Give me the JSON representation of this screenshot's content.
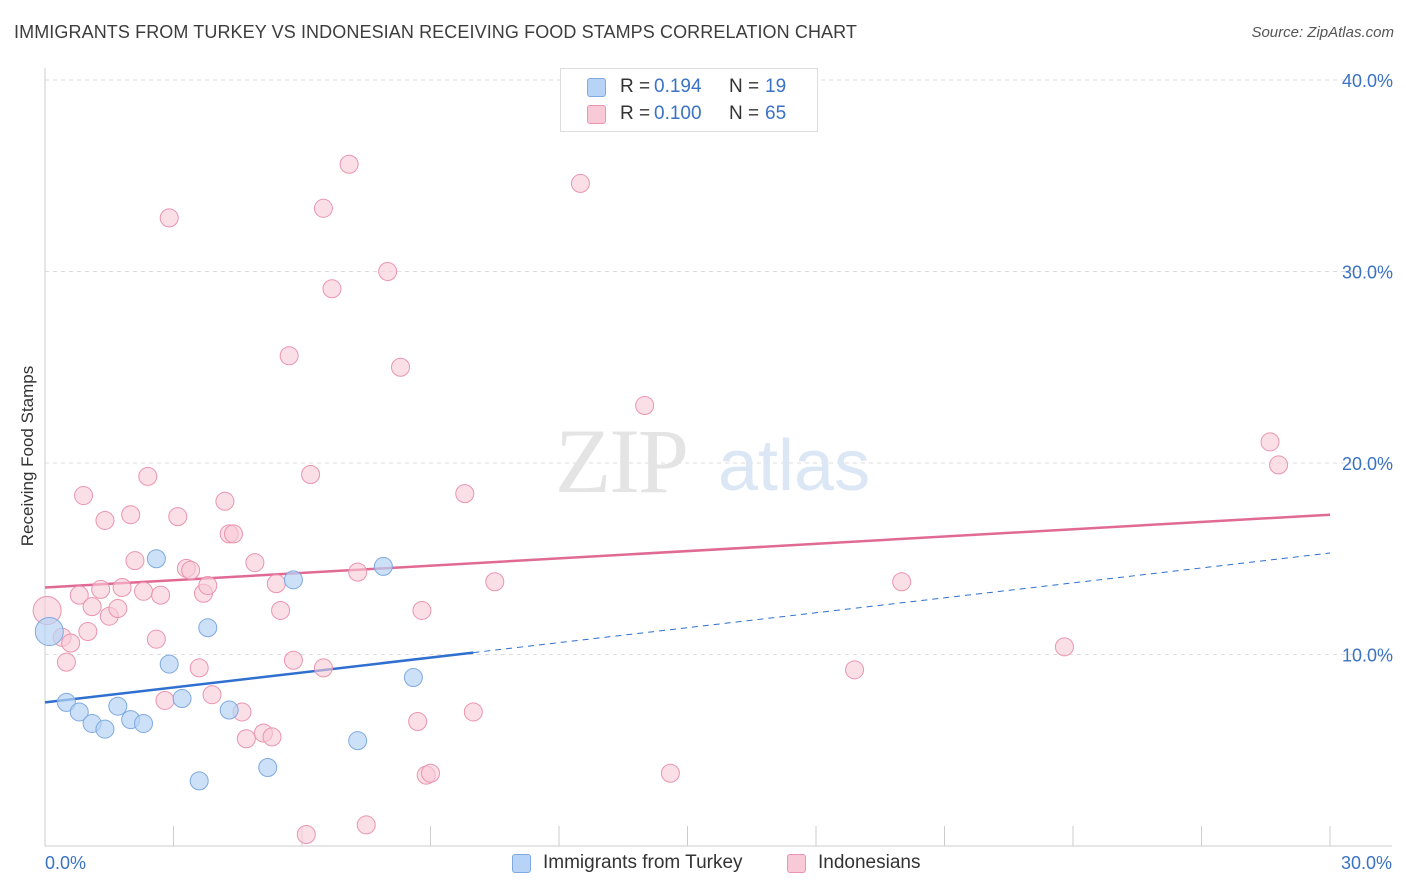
{
  "title": "IMMIGRANTS FROM TURKEY VS INDONESIAN RECEIVING FOOD STAMPS CORRELATION CHART",
  "source": "Source: ZipAtlas.com",
  "watermark": {
    "zip": "ZIP",
    "atlas": "atlas"
  },
  "legend": {
    "r_label": "R =",
    "n_label": "N =",
    "series1": {
      "r": "0.194",
      "n": "19"
    },
    "series2": {
      "r": "0.100",
      "n": "65"
    }
  },
  "colors": {
    "blue_fill": "#b7d3f5",
    "blue_stroke": "#7fa9e0",
    "blue_line": "#2e6fcf",
    "pink_fill": "#f8c9d7",
    "pink_stroke": "#ea94b0",
    "pink_line": "#e06a93",
    "grid": "#dddddd",
    "axis_text": "#3a72c4"
  },
  "chart_data": {
    "type": "scatter",
    "title": "IMMIGRANTS FROM TURKEY VS INDONESIAN RECEIVING FOOD STAMPS CORRELATION CHART",
    "xlabel": "",
    "ylabel": "Receiving Food Stamps",
    "xlim": [
      0,
      30
    ],
    "ylim": [
      0,
      40
    ],
    "x_tick_labels": [
      "0.0%",
      "30.0%"
    ],
    "y_ticks": [
      10,
      20,
      30,
      40
    ],
    "y_tick_labels": [
      "10.0%",
      "20.0%",
      "30.0%",
      "40.0%"
    ],
    "grid": true,
    "legend_position": "top-center",
    "series": [
      {
        "name": "Immigrants from Turkey",
        "color": "blue",
        "r": 0.194,
        "n": 19,
        "trend": {
          "x0": 0,
          "y0": 7.5,
          "x1": 10,
          "y1": 10.1,
          "dashed_to_x": 30,
          "dashed_to_y": 15.3
        },
        "points": [
          {
            "x": 0.1,
            "y": 11.2,
            "big": true
          },
          {
            "x": 0.5,
            "y": 7.5
          },
          {
            "x": 0.8,
            "y": 7.0
          },
          {
            "x": 1.1,
            "y": 6.4
          },
          {
            "x": 1.4,
            "y": 6.1
          },
          {
            "x": 1.7,
            "y": 7.3
          },
          {
            "x": 2.0,
            "y": 6.6
          },
          {
            "x": 2.3,
            "y": 6.4
          },
          {
            "x": 2.6,
            "y": 15.0
          },
          {
            "x": 2.9,
            "y": 9.5
          },
          {
            "x": 3.2,
            "y": 7.7
          },
          {
            "x": 3.6,
            "y": 3.4
          },
          {
            "x": 3.8,
            "y": 11.4
          },
          {
            "x": 4.3,
            "y": 7.1
          },
          {
            "x": 5.2,
            "y": 4.1
          },
          {
            "x": 5.8,
            "y": 13.9
          },
          {
            "x": 7.3,
            "y": 5.5
          },
          {
            "x": 7.9,
            "y": 14.6
          },
          {
            "x": 8.6,
            "y": 8.8
          }
        ]
      },
      {
        "name": "Indonesians",
        "color": "pink",
        "r": 0.1,
        "n": 65,
        "trend": {
          "x0": 0,
          "y0": 13.5,
          "x1": 30,
          "y1": 17.3
        },
        "points": [
          {
            "x": 0.05,
            "y": 12.3,
            "big": true
          },
          {
            "x": 0.4,
            "y": 10.9
          },
          {
            "x": 0.5,
            "y": 9.6
          },
          {
            "x": 0.6,
            "y": 10.6
          },
          {
            "x": 0.8,
            "y": 13.1
          },
          {
            "x": 0.9,
            "y": 18.3
          },
          {
            "x": 1.1,
            "y": 12.5
          },
          {
            "x": 1.3,
            "y": 13.4
          },
          {
            "x": 1.4,
            "y": 17.0
          },
          {
            "x": 1.5,
            "y": 12.0
          },
          {
            "x": 1.7,
            "y": 12.4
          },
          {
            "x": 1.8,
            "y": 13.5
          },
          {
            "x": 2.0,
            "y": 17.3
          },
          {
            "x": 2.1,
            "y": 14.9
          },
          {
            "x": 2.3,
            "y": 13.3
          },
          {
            "x": 2.4,
            "y": 19.3
          },
          {
            "x": 2.6,
            "y": 10.8
          },
          {
            "x": 2.7,
            "y": 13.1
          },
          {
            "x": 2.8,
            "y": 7.6
          },
          {
            "x": 2.9,
            "y": 32.8
          },
          {
            "x": 3.1,
            "y": 17.2
          },
          {
            "x": 3.3,
            "y": 14.5
          },
          {
            "x": 3.4,
            "y": 14.4
          },
          {
            "x": 3.6,
            "y": 9.3
          },
          {
            "x": 3.7,
            "y": 13.2
          },
          {
            "x": 3.8,
            "y": 13.6
          },
          {
            "x": 3.9,
            "y": 7.9
          },
          {
            "x": 4.2,
            "y": 18.0
          },
          {
            "x": 4.3,
            "y": 16.3
          },
          {
            "x": 4.4,
            "y": 16.3
          },
          {
            "x": 4.6,
            "y": 7.0
          },
          {
            "x": 4.7,
            "y": 5.6
          },
          {
            "x": 4.9,
            "y": 14.8
          },
          {
            "x": 5.1,
            "y": 5.9
          },
          {
            "x": 5.3,
            "y": 5.7
          },
          {
            "x": 5.4,
            "y": 13.7
          },
          {
            "x": 5.5,
            "y": 12.3
          },
          {
            "x": 5.7,
            "y": 25.6
          },
          {
            "x": 5.8,
            "y": 9.7
          },
          {
            "x": 6.1,
            "y": 0.6
          },
          {
            "x": 6.2,
            "y": 19.4
          },
          {
            "x": 6.5,
            "y": 33.3
          },
          {
            "x": 6.5,
            "y": 9.3
          },
          {
            "x": 6.7,
            "y": 29.1
          },
          {
            "x": 7.1,
            "y": 35.6
          },
          {
            "x": 7.3,
            "y": 14.3
          },
          {
            "x": 7.5,
            "y": 1.1
          },
          {
            "x": 8.0,
            "y": 30.0
          },
          {
            "x": 8.3,
            "y": 25.0
          },
          {
            "x": 8.7,
            "y": 6.5
          },
          {
            "x": 8.8,
            "y": 12.3
          },
          {
            "x": 8.9,
            "y": 3.7
          },
          {
            "x": 9.0,
            "y": 3.8
          },
          {
            "x": 9.8,
            "y": 18.4
          },
          {
            "x": 10.0,
            "y": 7.0
          },
          {
            "x": 10.5,
            "y": 13.8
          },
          {
            "x": 12.5,
            "y": 34.6
          },
          {
            "x": 14.0,
            "y": 23.0
          },
          {
            "x": 14.6,
            "y": 3.8
          },
          {
            "x": 18.9,
            "y": 9.2
          },
          {
            "x": 20.0,
            "y": 13.8
          },
          {
            "x": 23.8,
            "y": 10.4
          },
          {
            "x": 28.6,
            "y": 21.1
          },
          {
            "x": 28.8,
            "y": 19.9
          },
          {
            "x": 1.0,
            "y": 11.2
          }
        ]
      }
    ]
  },
  "bottom_legend": {
    "series1": "Immigrants from Turkey",
    "series2": "Indonesians"
  }
}
